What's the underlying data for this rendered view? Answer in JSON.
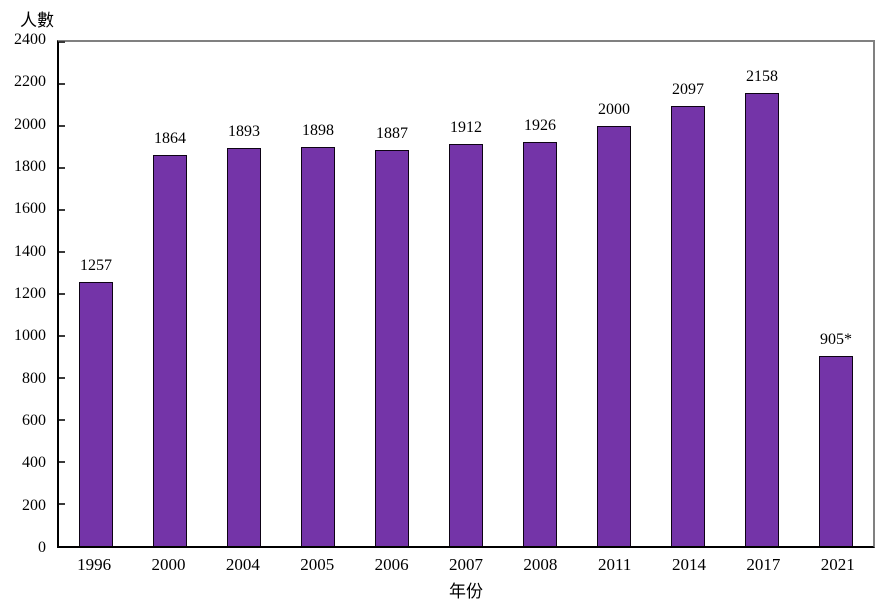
{
  "chart_data": {
    "type": "bar",
    "title": "",
    "ylabel": "人數",
    "xlabel": "年份",
    "categories": [
      "1996",
      "2000",
      "2004",
      "2005",
      "2006",
      "2007",
      "2008",
      "2011",
      "2014",
      "2017",
      "2021"
    ],
    "values": [
      1257,
      1864,
      1893,
      1898,
      1887,
      1912,
      1926,
      2000,
      2097,
      2158,
      905
    ],
    "bar_labels": [
      "1257",
      "1864",
      "1893",
      "1898",
      "1887",
      "1912",
      "1926",
      "2000",
      "2097",
      "2158",
      "905*"
    ],
    "ylim": [
      0,
      2400
    ],
    "ytick_step": 200,
    "grid": "off",
    "legend": "none",
    "bar_color": "#7434A8",
    "bar_border_color": "#0d0314",
    "axis_color": "#000000",
    "frame_color": "#808080"
  }
}
